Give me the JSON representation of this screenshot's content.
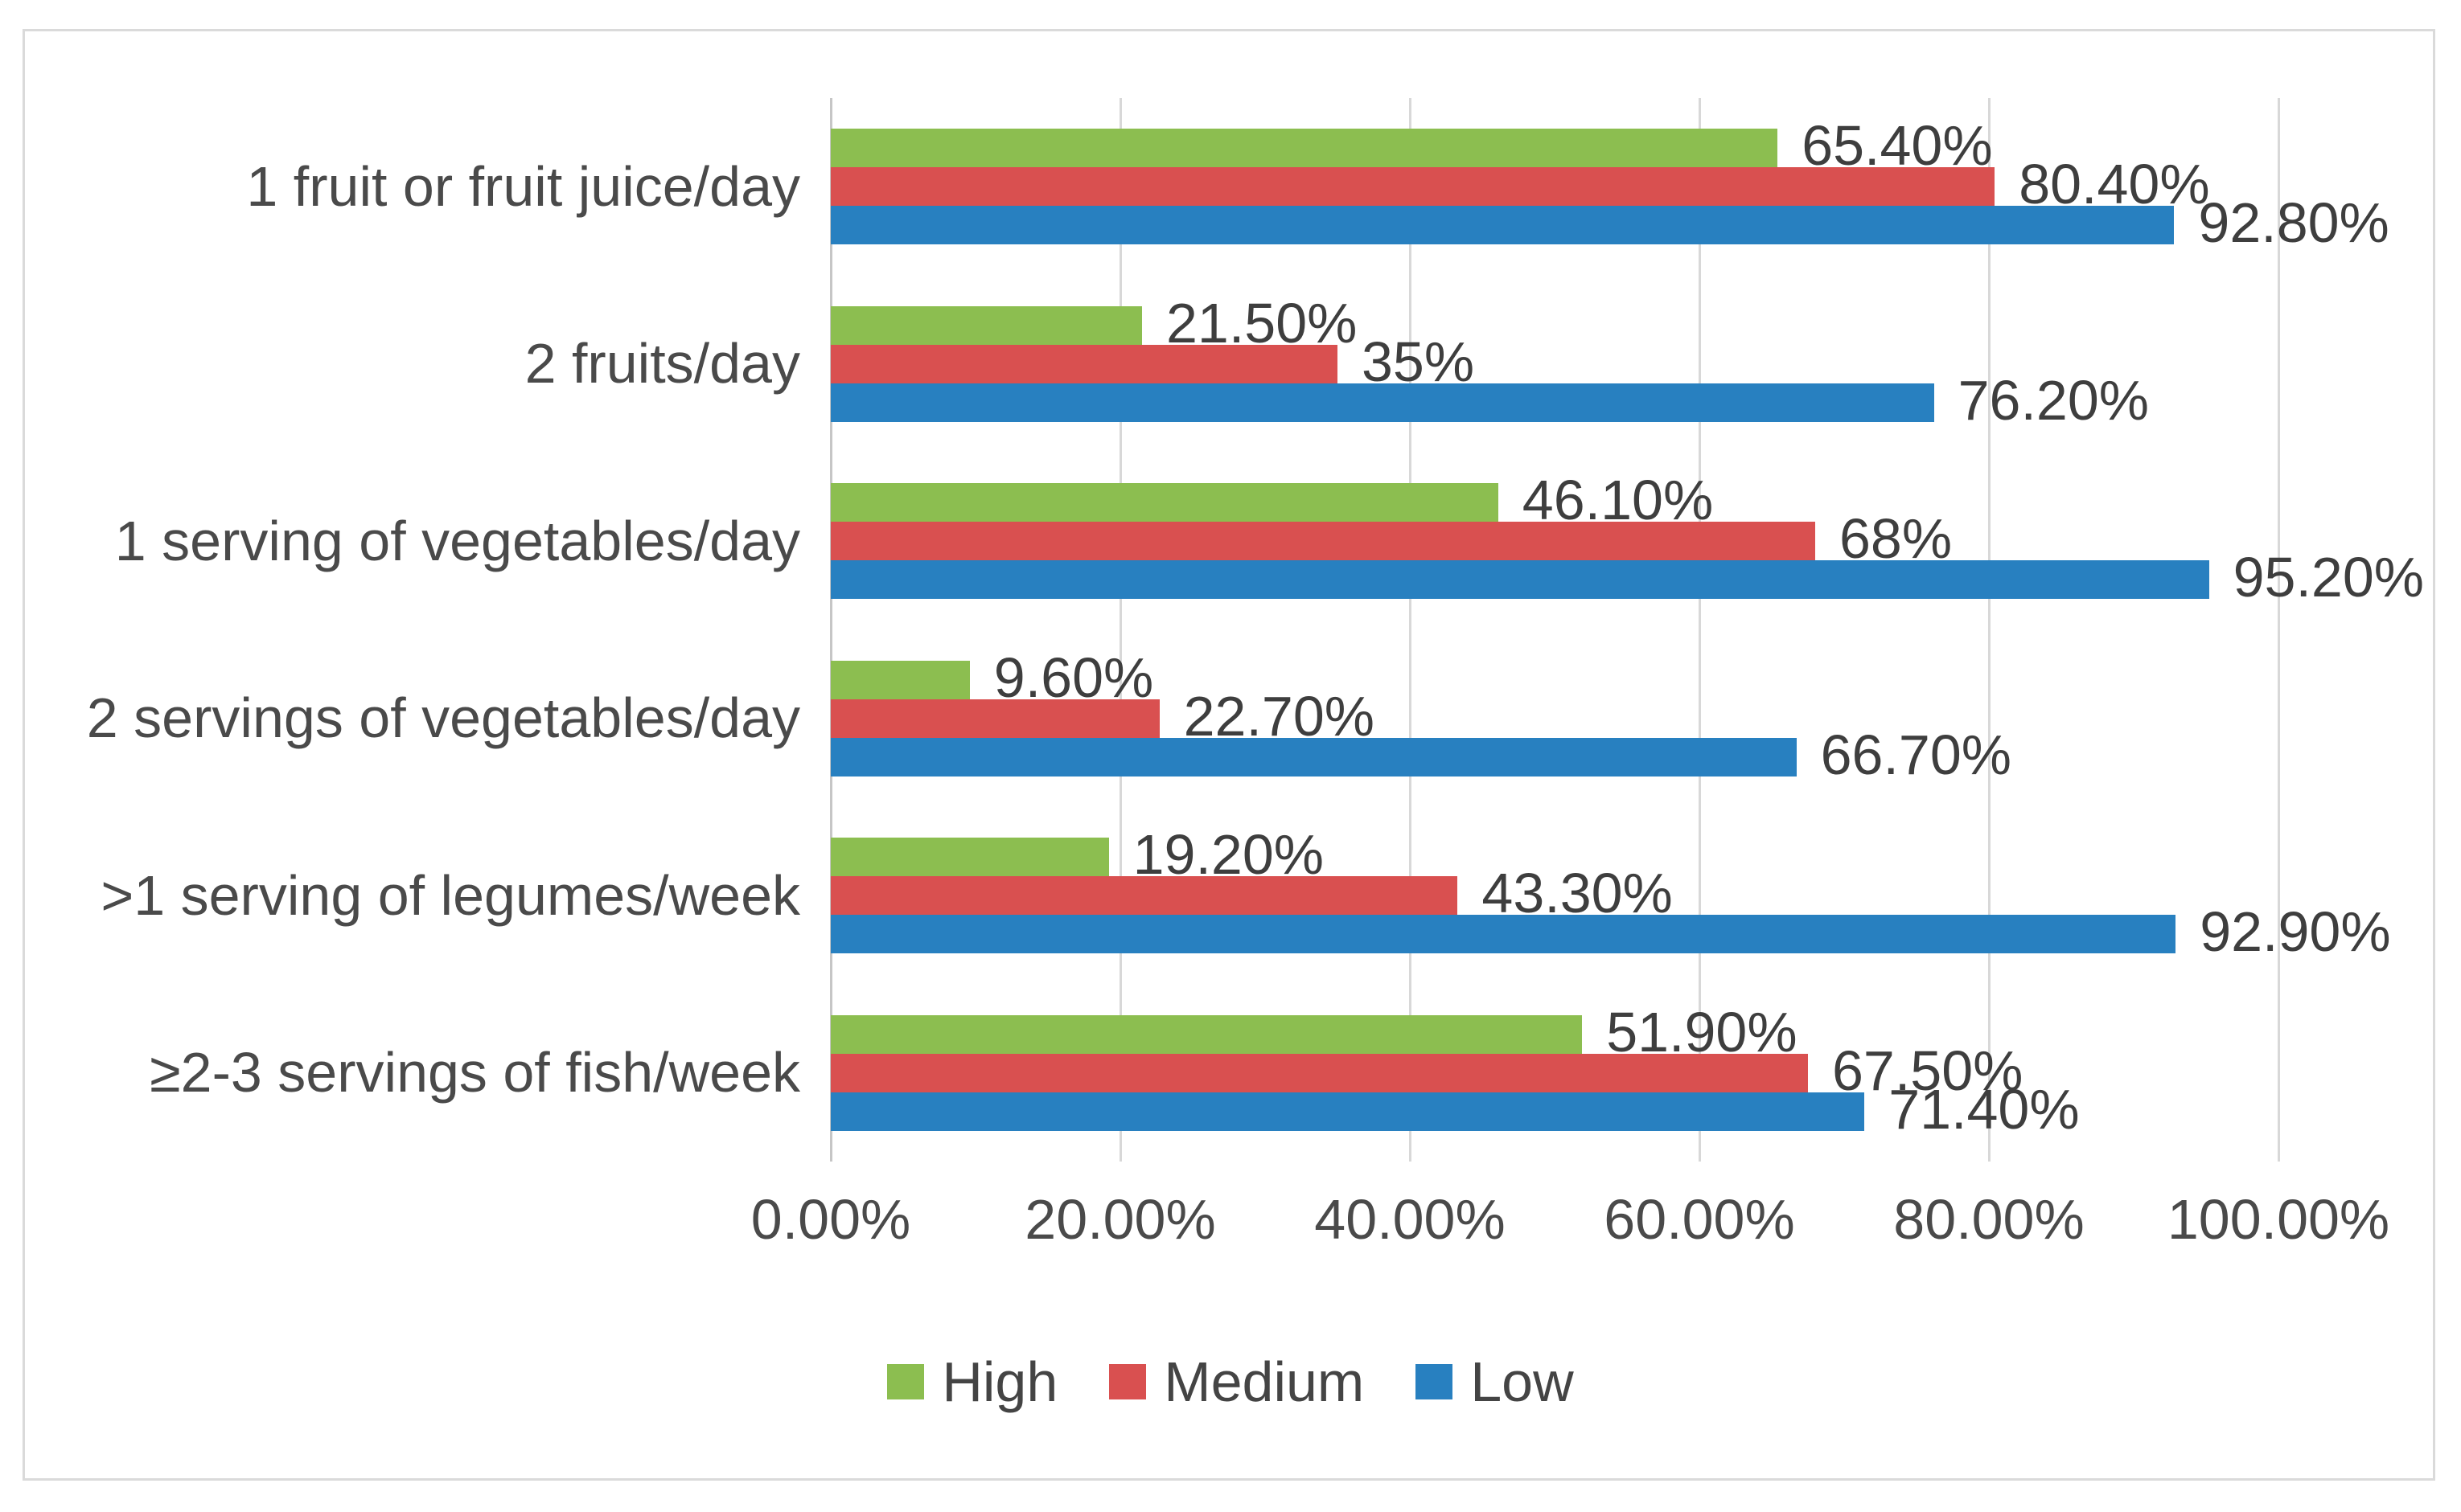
{
  "chart_data": {
    "type": "bar",
    "orientation": "horizontal",
    "title": "",
    "xlabel": "",
    "ylabel": "",
    "xlim": [
      0,
      100
    ],
    "grid": "vertical",
    "gridline_color": "#D8D8D8",
    "axis_line_color": "#C6C6C6",
    "legend_position": "bottom",
    "categories": [
      "1 fruit or fruit juice/day",
      "2 fruits/day",
      "1 serving of vegetables/day",
      "2 servings of vegetables/day",
      ">1 serving of legumes/week",
      "≥2-3 servings of fish/week"
    ],
    "series": [
      {
        "name": "High",
        "color": "#8CBE50",
        "values": [
          65.4,
          21.5,
          46.1,
          9.6,
          19.2,
          51.9
        ],
        "labels": [
          "65.40%",
          "21.50%",
          "46.10%",
          "9.60%",
          "19.20%",
          "51.90%"
        ]
      },
      {
        "name": "Medium",
        "color": "#D95050",
        "values": [
          80.4,
          35,
          68,
          22.7,
          43.3,
          67.5
        ],
        "labels": [
          "80.40%",
          "35%",
          "68%",
          "22.70%",
          "43.30%",
          "67.50%"
        ]
      },
      {
        "name": "Low",
        "color": "#2880C0",
        "values": [
          92.8,
          76.2,
          95.2,
          66.7,
          92.9,
          71.4
        ],
        "labels": [
          "92.80%",
          "76.20%",
          "95.20%",
          "66.70%",
          "92.90%",
          "71.40%"
        ]
      }
    ],
    "x_ticks": [
      "0.00%",
      "20.00%",
      "40.00%",
      "60.00%",
      "80.00%",
      "100.00%"
    ],
    "legend": [
      "High",
      "Medium",
      "Low"
    ]
  }
}
